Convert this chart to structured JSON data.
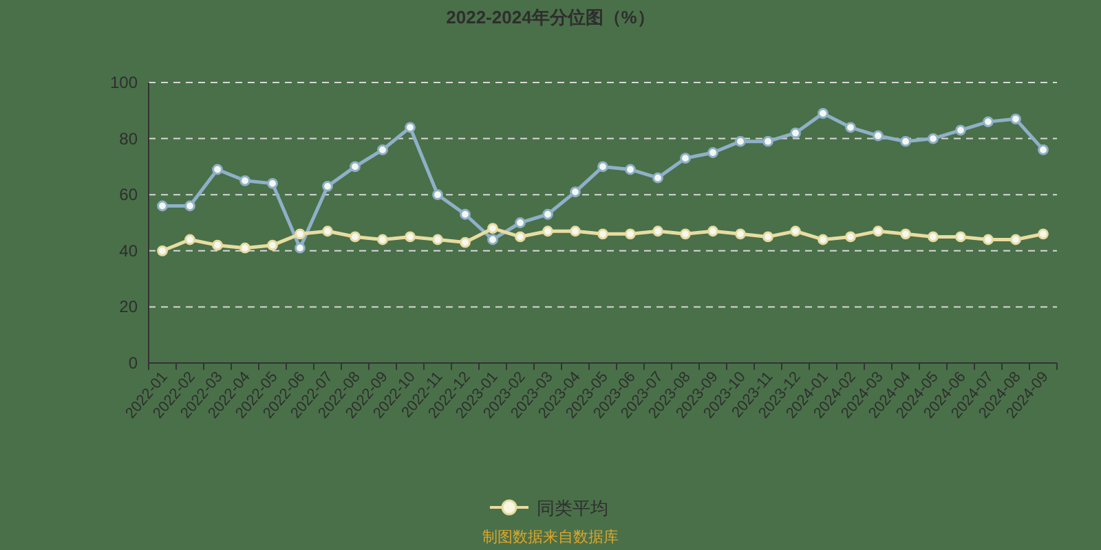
{
  "chart_data": {
    "type": "line",
    "title": "2022-2024年分位图（%）",
    "categories": [
      "2022-01",
      "2022-02",
      "2022-03",
      "2022-04",
      "2022-05",
      "2022-06",
      "2022-07",
      "2022-08",
      "2022-09",
      "2022-10",
      "2022-11",
      "2022-12",
      "2023-01",
      "2023-02",
      "2023-03",
      "2023-04",
      "2023-05",
      "2023-06",
      "2023-07",
      "2023-08",
      "2023-09",
      "2023-10",
      "2023-11",
      "2023-12",
      "2024-01",
      "2024-02",
      "2024-03",
      "2024-04",
      "2024-05",
      "2024-06",
      "2024-07",
      "2024-08",
      "2024-09"
    ],
    "series": [
      {
        "color": "#8fb0c8",
        "values": [
          56,
          56,
          69,
          65,
          64,
          41,
          63,
          70,
          76,
          84,
          60,
          53,
          44,
          50,
          53,
          61,
          70,
          69,
          66,
          73,
          75,
          79,
          79,
          82,
          89,
          84,
          81,
          79,
          80,
          83,
          86,
          87,
          76
        ]
      },
      {
        "name": "同类平均",
        "color": "#e8dca0",
        "values": [
          40,
          44,
          42,
          41,
          42,
          46,
          47,
          45,
          44,
          45,
          44,
          43,
          48,
          45,
          47,
          47,
          46,
          46,
          47,
          46,
          47,
          46,
          45,
          47,
          44,
          45,
          47,
          46,
          45,
          45,
          44,
          44,
          46
        ]
      }
    ],
    "ylim": [
      0,
      100
    ],
    "yticks": [
      0,
      20,
      40,
      60,
      80,
      100
    ],
    "grid": "y",
    "legend": "bottom",
    "marker": "circle",
    "line_style": "solid",
    "annotations": [
      "制图数据来自数据库"
    ]
  }
}
